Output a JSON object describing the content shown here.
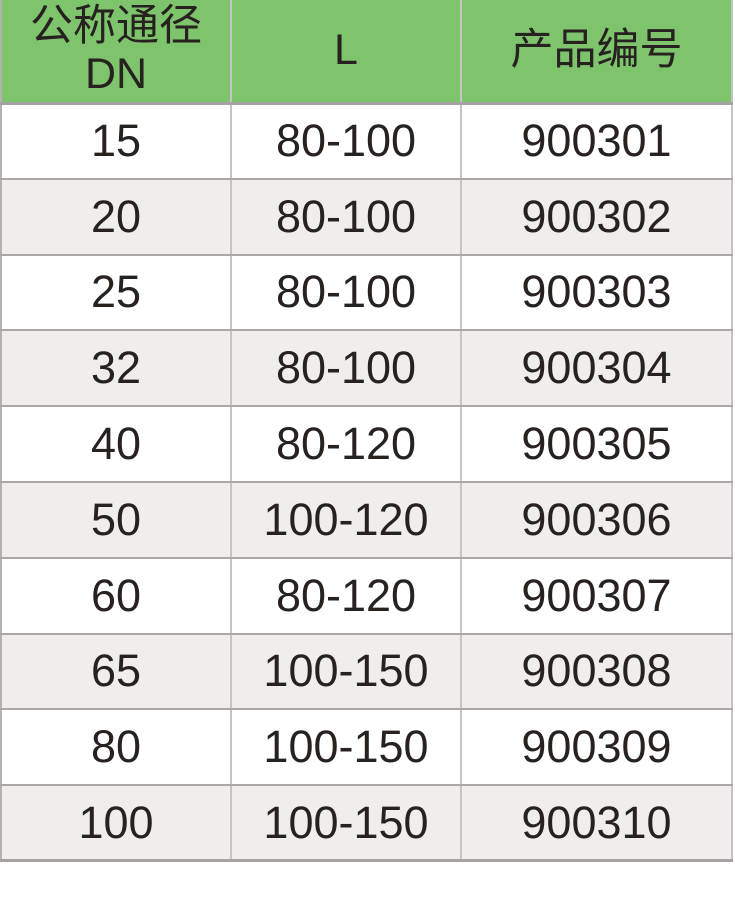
{
  "table": {
    "header": {
      "col1_line1": "公称通径",
      "col1_line2": "DN",
      "col2": "L",
      "col3": "产品编号"
    },
    "rows": [
      {
        "dn": "15",
        "l": "80-100",
        "code": "900301"
      },
      {
        "dn": "20",
        "l": "80-100",
        "code": "900302"
      },
      {
        "dn": "25",
        "l": "80-100",
        "code": "900303"
      },
      {
        "dn": "32",
        "l": "80-100",
        "code": "900304"
      },
      {
        "dn": "40",
        "l": "80-120",
        "code": "900305"
      },
      {
        "dn": "50",
        "l": "100-120",
        "code": "900306"
      },
      {
        "dn": "60",
        "l": "80-120",
        "code": "900307"
      },
      {
        "dn": "65",
        "l": "100-150",
        "code": "900308"
      },
      {
        "dn": "80",
        "l": "100-150",
        "code": "900309"
      },
      {
        "dn": "100",
        "l": "100-150",
        "code": "900310"
      }
    ]
  },
  "chart_data": {
    "type": "table",
    "columns": [
      "公称通径 DN",
      "L",
      "产品编号"
    ],
    "rows": [
      [
        "15",
        "80-100",
        "900301"
      ],
      [
        "20",
        "80-100",
        "900302"
      ],
      [
        "25",
        "80-100",
        "900303"
      ],
      [
        "32",
        "80-100",
        "900304"
      ],
      [
        "40",
        "80-120",
        "900305"
      ],
      [
        "50",
        "100-120",
        "900306"
      ],
      [
        "60",
        "80-120",
        "900307"
      ],
      [
        "65",
        "100-150",
        "900308"
      ],
      [
        "80",
        "100-150",
        "900309"
      ],
      [
        "100",
        "100-150",
        "900310"
      ]
    ]
  },
  "colors": {
    "header_bg": "#7EC46D",
    "row_bg": "#FFFFFF",
    "row_alt_bg": "#EFEEED",
    "text": "#272120",
    "border_horizontal": "#A5A2A1",
    "border_horizontal_light": "#AAA7A6",
    "border_vertical": "#C6C3C2",
    "border_outer": "#B4B1B0"
  }
}
